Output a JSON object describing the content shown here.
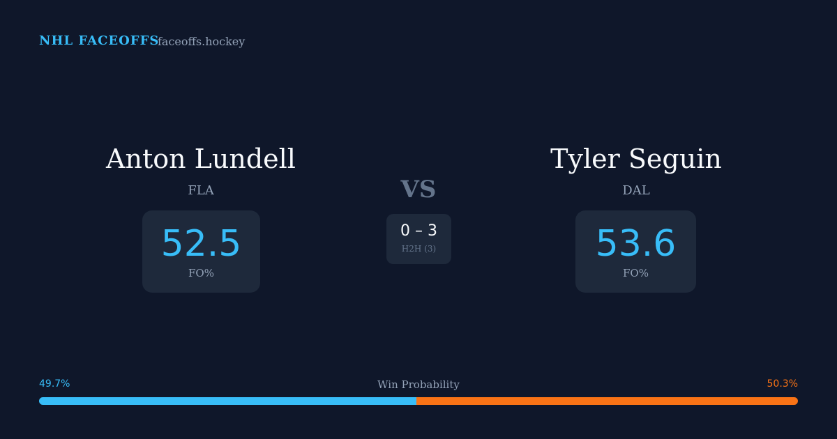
{
  "header": {
    "title": "NHL FACEOFFS",
    "site": "faceoffs.hockey"
  },
  "players": [
    {
      "name": "Anton Lundell",
      "team": "FLA",
      "stat": 52.5,
      "stat_label": "FO%"
    },
    {
      "name": "Tyler Seguin",
      "team": "DAL",
      "stat": 53.6,
      "stat_label": "FO%"
    }
  ],
  "vs": "VS",
  "h2h": {
    "score": "0 – 3",
    "label": "H2H (3)"
  },
  "win_probability": {
    "label": "Win Probability",
    "values": [
      49.7,
      50.3
    ],
    "value_labels": [
      "49.7%",
      "50.3%"
    ],
    "colors": [
      "#38bdf8",
      "#f97316"
    ]
  }
}
